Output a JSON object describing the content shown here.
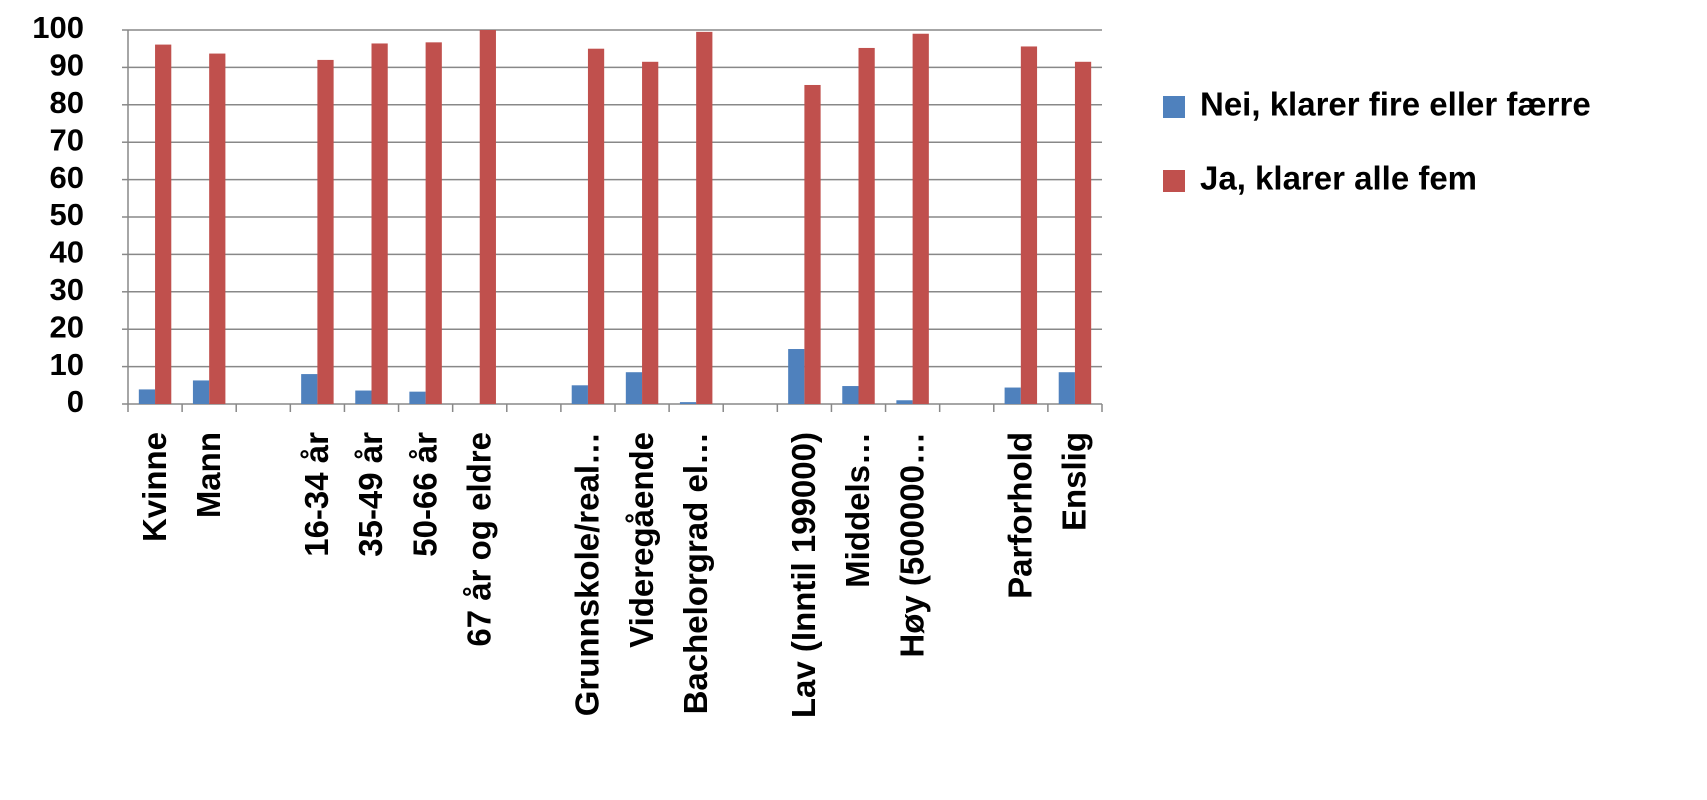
{
  "chart_data": {
    "type": "bar",
    "categories": [
      "Kvinne",
      "Mann",
      null,
      "16-34 år",
      "35-49 år",
      "50-66 år",
      "67 år og eldre",
      null,
      "Grunnskole/real…",
      "Videregående",
      "Bachelorgrad el…",
      null,
      "Lav (Inntil 199000)",
      "Middels…",
      "Høy (500000…",
      null,
      "Parforhold",
      "Enslig"
    ],
    "series": [
      {
        "name": "Nei, klarer fire eller færre",
        "color": "#4f81bd",
        "values": [
          3.9,
          6.3,
          null,
          8,
          3.6,
          3.3,
          0,
          null,
          5,
          8.5,
          0.5,
          null,
          14.7,
          4.8,
          1,
          null,
          4.4,
          8.5
        ]
      },
      {
        "name": "Ja, klarer alle fem",
        "color": "#c0504d",
        "values": [
          96.1,
          93.7,
          null,
          92,
          96.4,
          96.7,
          100,
          null,
          95,
          91.5,
          99.5,
          null,
          85.3,
          95.2,
          99,
          null,
          95.6,
          91.5
        ]
      }
    ],
    "ylim": [
      0,
      100
    ],
    "yticks": [
      0,
      10,
      20,
      30,
      40,
      50,
      60,
      70,
      80,
      90,
      100
    ],
    "grid": true,
    "legend": "right"
  }
}
